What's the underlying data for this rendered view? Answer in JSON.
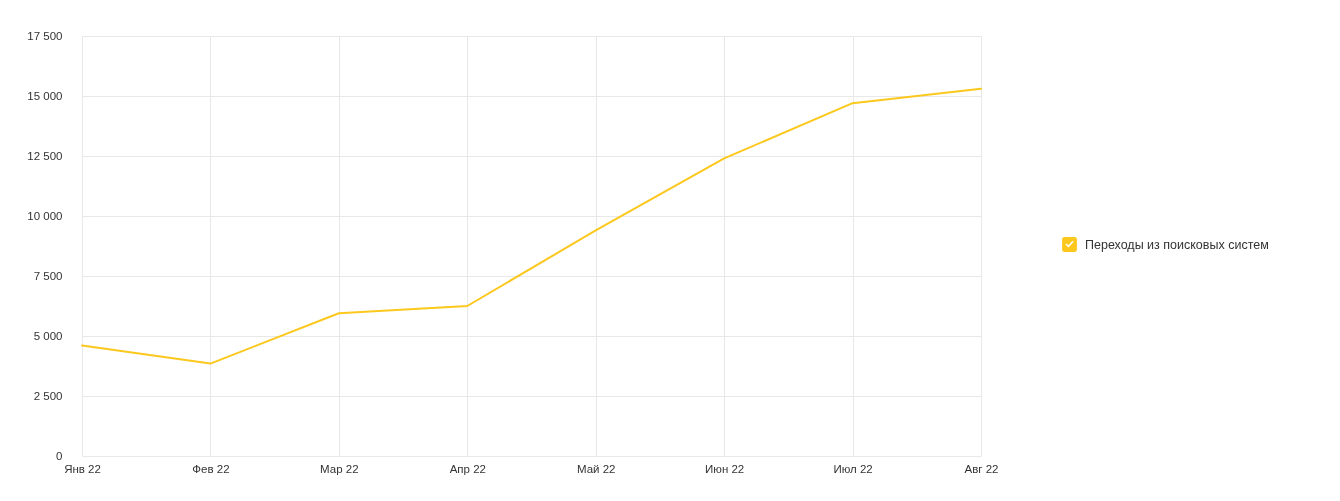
{
  "chart_data": {
    "type": "line",
    "categories": [
      "Янв 22",
      "Фев 22",
      "Мар 22",
      "Апр 22",
      "Май 22",
      "Июн 22",
      "Июл 22",
      "Авг 22"
    ],
    "series": [
      {
        "name": "Переходы из поисковых систем",
        "color": "#fcc81e",
        "values": [
          4600,
          3850,
          5950,
          6250,
          9400,
          12400,
          14700,
          15300
        ]
      }
    ],
    "ylim": [
      0,
      17500
    ],
    "yticks": [
      0,
      {
        "value": 2500,
        "label": "2 500"
      },
      {
        "value": 5000,
        "label": "5 000"
      },
      {
        "value": 7500,
        "label": "7 500"
      },
      {
        "value": 10000,
        "label": "10 000"
      },
      {
        "value": 12500,
        "label": "12 500"
      },
      {
        "value": 15000,
        "label": "15 000"
      },
      {
        "value": 17500,
        "label": "17 500"
      }
    ],
    "grid": true,
    "legend": "right",
    "marker": "none",
    "line_style": "solid"
  }
}
